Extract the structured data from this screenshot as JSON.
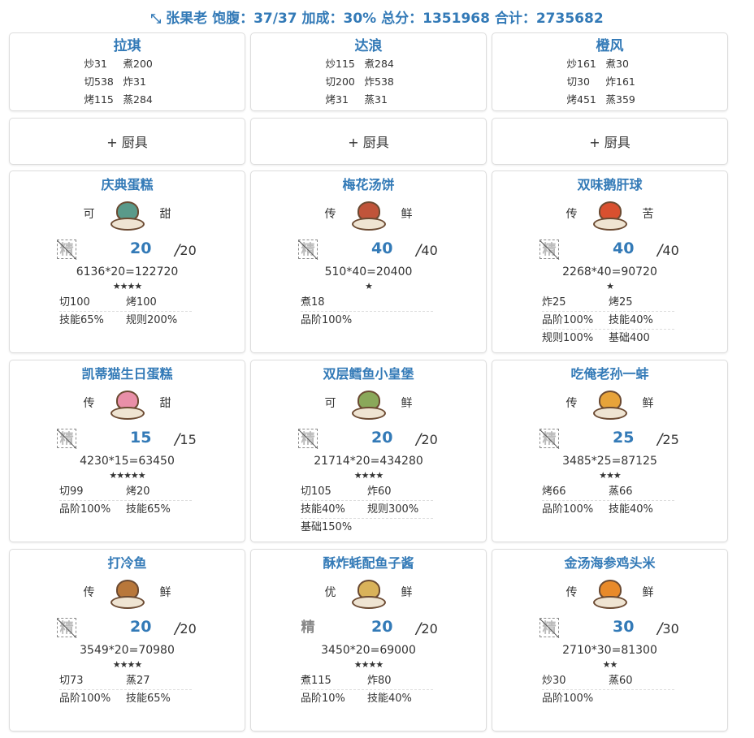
{
  "header": {
    "icon": "compress-icon",
    "text": "张果老 饱腹：37/37 加成：30% 总分：1351968 合计：2735682"
  },
  "chefs": [
    {
      "name": "拉琪",
      "stats": [
        "炒31",
        "煮200",
        "切538",
        "炸31",
        "烤115",
        "蒸284"
      ]
    },
    {
      "name": "达浪",
      "stats": [
        "炒115",
        "煮284",
        "切200",
        "炸538",
        "烤31",
        "蒸31"
      ]
    },
    {
      "name": "橙风",
      "stats": [
        "炒161",
        "煮30",
        "切30",
        "炸161",
        "烤451",
        "蒸359"
      ]
    }
  ],
  "tools": [
    {
      "label": "+ 厨具"
    },
    {
      "label": "+ 厨具"
    },
    {
      "label": "+ 厨具"
    }
  ],
  "recipes": [
    {
      "name": "庆典蛋糕",
      "left": "可",
      "right": "甜",
      "jing": "精",
      "jing_style": "broken",
      "count": "20",
      "max": "20",
      "formula": "6136*20=122720",
      "stars": "★★★★",
      "attrs": [
        [
          "切100",
          "烤100"
        ],
        [
          "技能65%",
          "规则200%"
        ]
      ],
      "color": "#5a9a8a"
    },
    {
      "name": "梅花汤饼",
      "left": "传",
      "right": "鲜",
      "jing": "精",
      "jing_style": "broken",
      "count": "40",
      "max": "40",
      "formula": "510*40=20400",
      "stars": "★",
      "attrs": [
        [
          "煮18",
          ""
        ],
        [
          "品阶100%",
          ""
        ]
      ],
      "color": "#c0543a"
    },
    {
      "name": "双味鹅肝球",
      "left": "传",
      "right": "苦",
      "jing": "精",
      "jing_style": "broken",
      "count": "40",
      "max": "40",
      "formula": "2268*40=90720",
      "stars": "★",
      "attrs": [
        [
          "炸25",
          "烤25"
        ],
        [
          "品阶100%",
          "技能40%"
        ],
        [
          "规则100%",
          "基础400"
        ]
      ],
      "color": "#d9502f"
    },
    {
      "name": "凯蒂猫生日蛋糕",
      "left": "传",
      "right": "甜",
      "jing": "精",
      "jing_style": "broken",
      "count": "15",
      "max": "15",
      "formula": "4230*15=63450",
      "stars": "★★★★★",
      "attrs": [
        [
          "切99",
          "烤20"
        ],
        [
          "品阶100%",
          "技能65%"
        ]
      ],
      "color": "#e98fa8"
    },
    {
      "name": "双层鳕鱼小皇堡",
      "left": "可",
      "right": "鲜",
      "jing": "精",
      "jing_style": "broken",
      "count": "20",
      "max": "20",
      "formula": "21714*20=434280",
      "stars": "★★★★",
      "attrs": [
        [
          "切105",
          "炸60"
        ],
        [
          "技能40%",
          "规则300%"
        ],
        [
          "基础150%",
          ""
        ]
      ],
      "color": "#8aa85a"
    },
    {
      "name": "吃俺老孙一蚌",
      "left": "传",
      "right": "鲜",
      "jing": "精",
      "jing_style": "broken",
      "count": "25",
      "max": "25",
      "formula": "3485*25=87125",
      "stars": "★★★",
      "attrs": [
        [
          "烤66",
          "蒸66"
        ],
        [
          "品阶100%",
          "技能40%"
        ]
      ],
      "color": "#e7a33a"
    },
    {
      "name": "打冷鱼",
      "left": "传",
      "right": "鲜",
      "jing": "精",
      "jing_style": "broken",
      "count": "20",
      "max": "20",
      "formula": "3549*20=70980",
      "stars": "★★★★",
      "attrs": [
        [
          "切73",
          "蒸27"
        ],
        [
          "品阶100%",
          "技能65%"
        ]
      ],
      "color": "#b8773a"
    },
    {
      "name": "酥炸蚝配鱼子酱",
      "left": "优",
      "right": "鲜",
      "jing": "精",
      "jing_style": "plain",
      "count": "20",
      "max": "20",
      "formula": "3450*20=69000",
      "stars": "★★★★",
      "attrs": [
        [
          "煮115",
          "炸80"
        ],
        [
          "品阶10%",
          "技能40%"
        ]
      ],
      "color": "#d9b25a"
    },
    {
      "name": "金汤海参鸡头米",
      "left": "传",
      "right": "鲜",
      "jing": "精",
      "jing_style": "broken",
      "count": "30",
      "max": "30",
      "formula": "2710*30=81300",
      "stars": "★★",
      "attrs": [
        [
          "炒30",
          "蒸60"
        ],
        [
          "品阶100%",
          ""
        ]
      ],
      "color": "#e88a2a"
    }
  ]
}
